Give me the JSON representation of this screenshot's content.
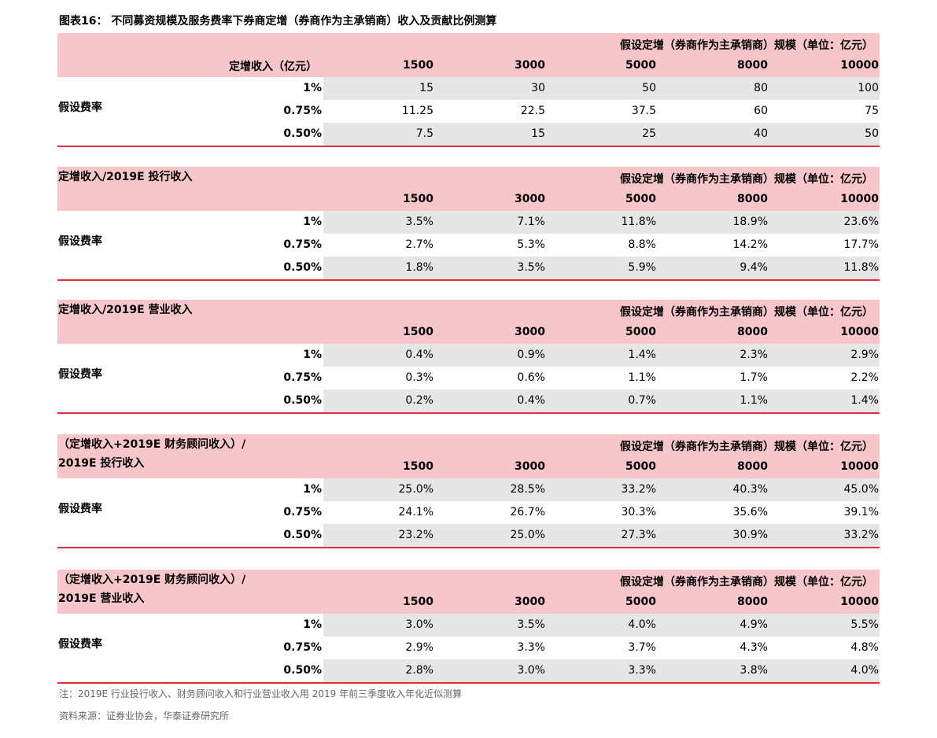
{
  "title": "图表16：  不同募资规模及服务费率下券商定增（券商作为主承销商）收入及贡献比例测算",
  "tables": [
    {
      "corner": "定增收入（亿元）",
      "scale_header": "假设定增（券商作为主承销商）规模（单位：亿元）",
      "columns": [
        1500,
        3000,
        5000,
        8000,
        10000
      ],
      "group_label": "假设费率",
      "rows": [
        {
          "rate": "1%",
          "values": [
            15,
            30,
            50,
            80,
            100
          ]
        },
        {
          "rate": "0.75%",
          "values": [
            11.25,
            22.5,
            37.5,
            60,
            75
          ]
        },
        {
          "rate": "0.50%",
          "values": [
            7.5,
            15,
            25,
            40,
            50
          ]
        }
      ]
    },
    {
      "label": [
        "定增收入/2019E 投行收入"
      ],
      "scale_header": "假设定增（券商作为主承销商）规模（单位：亿元）",
      "columns": [
        1500,
        3000,
        5000,
        8000,
        10000
      ],
      "group_label": "假设费率",
      "rows": [
        {
          "rate": "1%",
          "values": [
            "3.5%",
            "7.1%",
            "11.8%",
            "18.9%",
            "23.6%"
          ]
        },
        {
          "rate": "0.75%",
          "values": [
            "2.7%",
            "5.3%",
            "8.8%",
            "14.2%",
            "17.7%"
          ]
        },
        {
          "rate": "0.50%",
          "values": [
            "1.8%",
            "3.5%",
            "5.9%",
            "9.4%",
            "11.8%"
          ]
        }
      ]
    },
    {
      "label": [
        "定增收入/2019E 营业收入"
      ],
      "scale_header": "假设定增（券商作为主承销商）规模（单位：亿元）",
      "columns": [
        1500,
        3000,
        5000,
        8000,
        10000
      ],
      "group_label": "假设费率",
      "rows": [
        {
          "rate": "1%",
          "values": [
            "0.4%",
            "0.9%",
            "1.4%",
            "2.3%",
            "2.9%"
          ]
        },
        {
          "rate": "0.75%",
          "values": [
            "0.3%",
            "0.6%",
            "1.1%",
            "1.7%",
            "2.2%"
          ]
        },
        {
          "rate": "0.50%",
          "values": [
            "0.2%",
            "0.4%",
            "0.7%",
            "1.1%",
            "1.4%"
          ]
        }
      ]
    },
    {
      "label": [
        "（定增收入+2019E 财务顾问收入）/",
        "2019E 投行收入"
      ],
      "scale_header": "假设定增（券商作为主承销商）规模（单位：亿元）",
      "columns": [
        1500,
        3000,
        5000,
        8000,
        10000
      ],
      "group_label": "假设费率",
      "rows": [
        {
          "rate": "1%",
          "values": [
            "25.0%",
            "28.5%",
            "33.2%",
            "40.3%",
            "45.0%"
          ]
        },
        {
          "rate": "0.75%",
          "values": [
            "24.1%",
            "26.7%",
            "30.3%",
            "35.6%",
            "39.1%"
          ]
        },
        {
          "rate": "0.50%",
          "values": [
            "23.2%",
            "25.0%",
            "27.3%",
            "30.9%",
            "33.2%"
          ]
        }
      ]
    },
    {
      "label": [
        "（定增收入+2019E 财务顾问收入）/",
        "2019E 营业收入"
      ],
      "scale_header": "假设定增（券商作为主承销商）规模（单位：亿元）",
      "columns": [
        1500,
        3000,
        5000,
        8000,
        10000
      ],
      "group_label": "假设费率",
      "rows": [
        {
          "rate": "1%",
          "values": [
            "3.0%",
            "3.5%",
            "4.0%",
            "4.9%",
            "5.5%"
          ]
        },
        {
          "rate": "0.75%",
          "values": [
            "2.9%",
            "3.3%",
            "3.7%",
            "4.3%",
            "4.8%"
          ]
        },
        {
          "rate": "0.50%",
          "values": [
            "2.8%",
            "3.0%",
            "3.3%",
            "3.8%",
            "4.0%"
          ]
        }
      ]
    }
  ],
  "notes": [
    "注：2019E 行业投行收入、财务顾问收入和行业营业收入用 2019 年前三季度收入年化近似测算",
    "资料来源：证券业协会，华泰证券研究所"
  ]
}
